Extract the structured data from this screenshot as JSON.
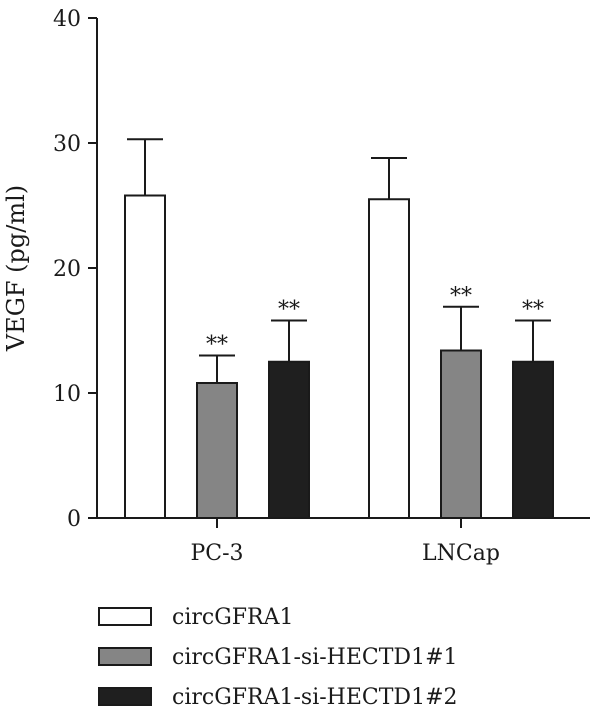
{
  "chart_data": {
    "type": "bar",
    "title": "",
    "xlabel": "",
    "ylabel": "VEGF (pg/ml)",
    "ylim": [
      0,
      40
    ],
    "yticks": [
      0,
      10,
      20,
      30,
      40
    ],
    "categories": [
      "PC-3",
      "LNCap"
    ],
    "grid": false,
    "legend_position": "bottom",
    "series": [
      {
        "name": "circGFRA1",
        "values": [
          25.8,
          25.5
        ],
        "errors": [
          4.5,
          3.3
        ],
        "annotations": [
          "",
          ""
        ],
        "color": "#ffffff"
      },
      {
        "name": "circGFRA1-si-HECTD1#1",
        "values": [
          10.8,
          13.4
        ],
        "errors": [
          2.2,
          3.5
        ],
        "annotations": [
          "**",
          "**"
        ],
        "color": "#858585"
      },
      {
        "name": "circGFRA1-si-HECTD1#2",
        "values": [
          12.5,
          12.5
        ],
        "errors": [
          3.3,
          3.3
        ],
        "annotations": [
          "**",
          "**"
        ],
        "color": "#1f1f1f"
      }
    ]
  }
}
